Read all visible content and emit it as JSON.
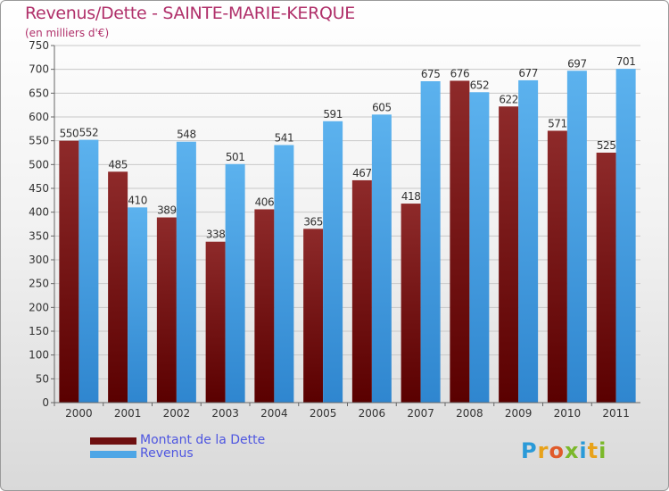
{
  "chart_data": {
    "type": "bar",
    "title": "Revenus/Dette - SAINTE-MARIE-KERQUE",
    "subtitle": "(en milliers d'€)",
    "categories": [
      "2000",
      "2001",
      "2002",
      "2003",
      "2004",
      "2005",
      "2006",
      "2007",
      "2008",
      "2009",
      "2010",
      "2011"
    ],
    "series": [
      {
        "name": "Montant de la Dette",
        "color": "#7a1a1a",
        "values": [
          550,
          485,
          389,
          338,
          406,
          365,
          467,
          418,
          676,
          622,
          571,
          525
        ]
      },
      {
        "name": "Revenus",
        "color": "#4ea6e6",
        "values": [
          552,
          410,
          548,
          501,
          541,
          591,
          605,
          675,
          652,
          677,
          697,
          701
        ]
      }
    ],
    "ylim": [
      0,
      750
    ],
    "yticks": [
      0,
      50,
      100,
      150,
      200,
      250,
      300,
      350,
      400,
      450,
      500,
      550,
      600,
      650,
      700,
      750
    ],
    "grid": true,
    "legend": "bottom-left"
  },
  "logo": {
    "text": "Proxiti"
  }
}
